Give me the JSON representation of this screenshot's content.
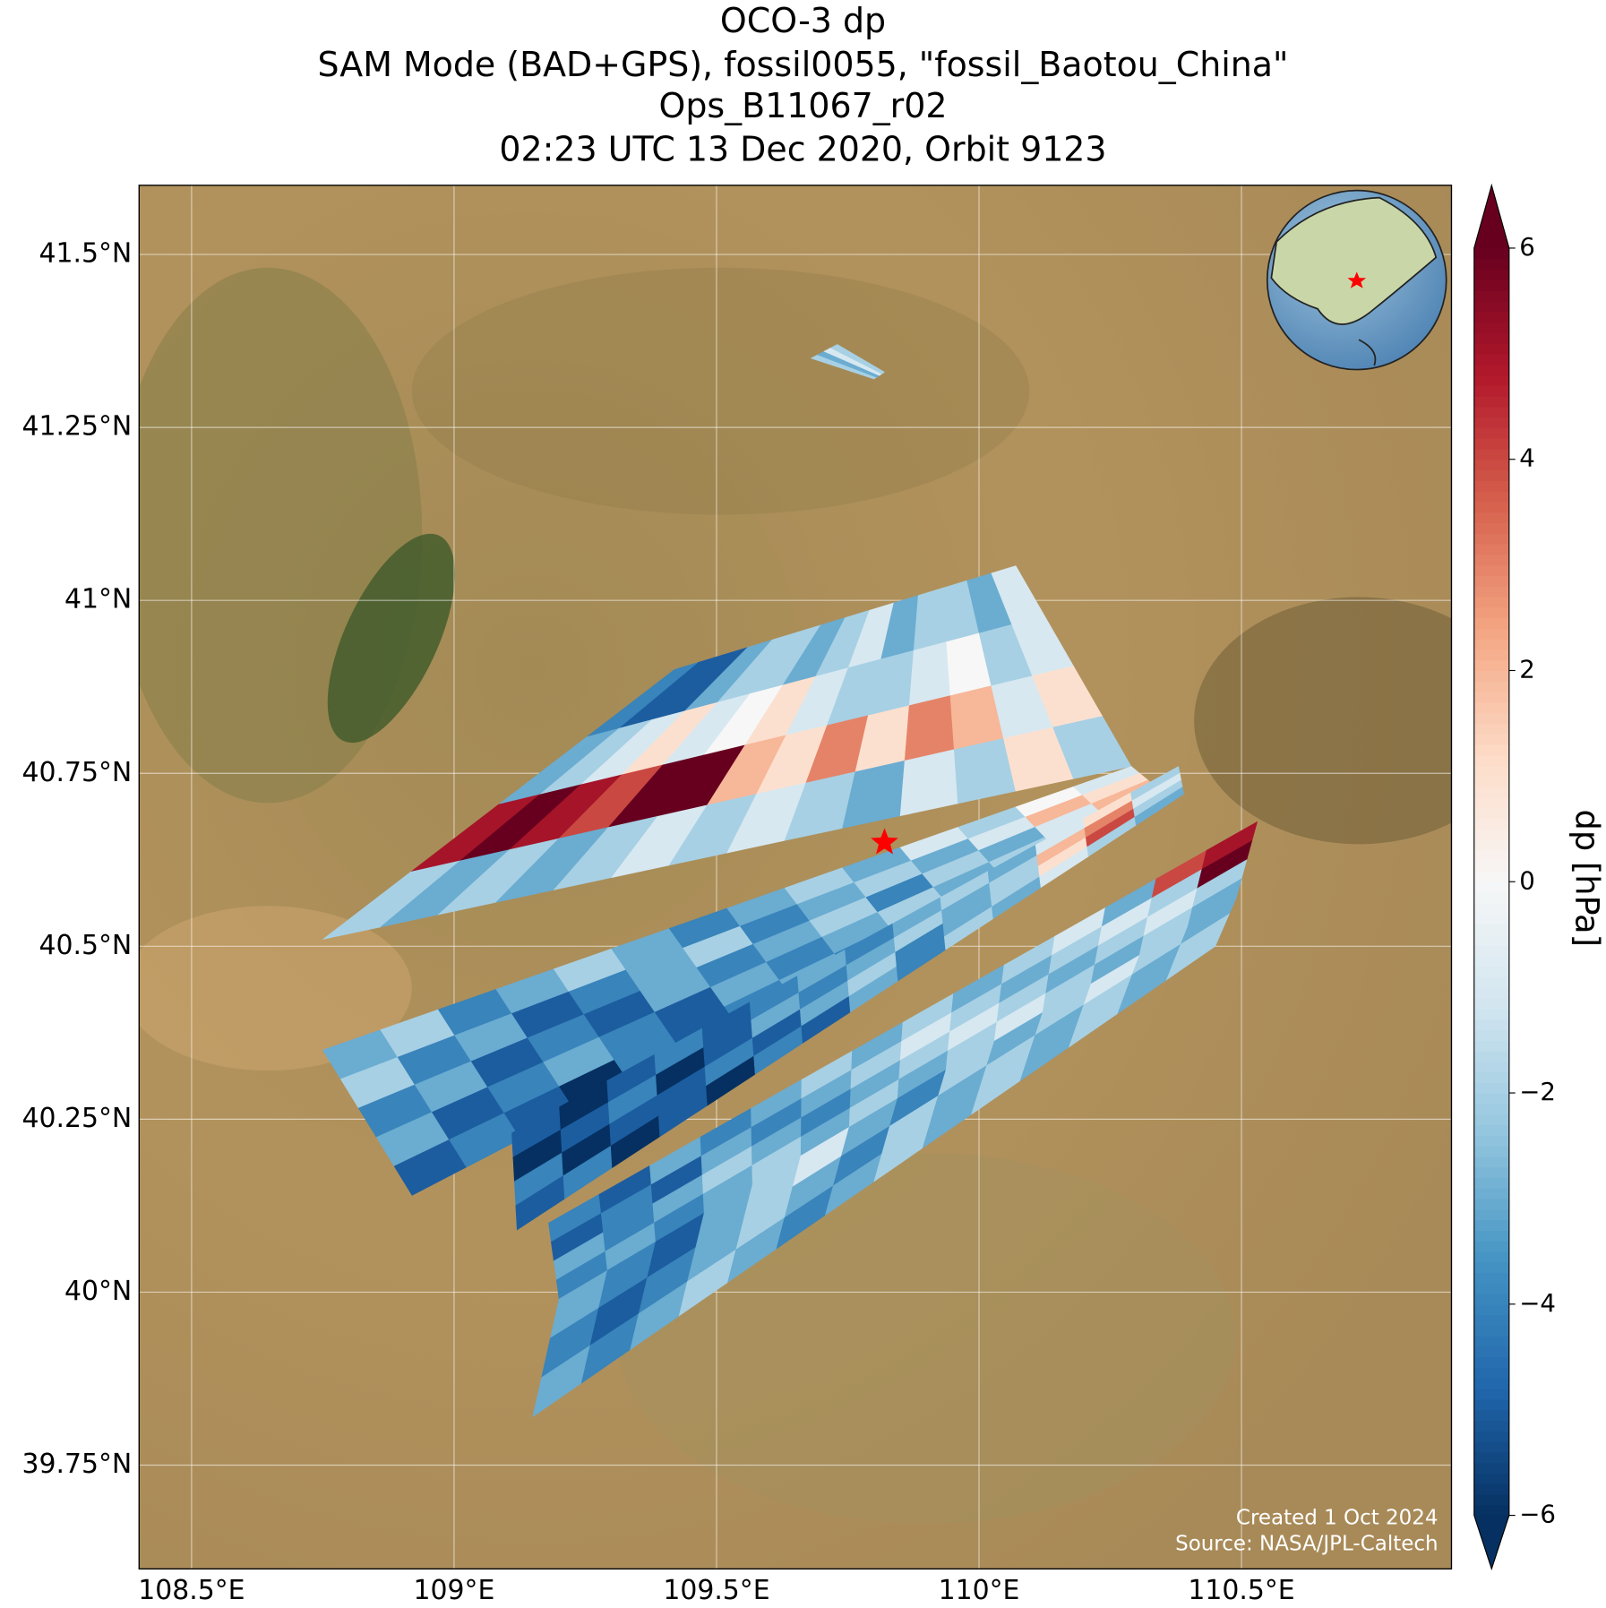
{
  "chart_data": {
    "type": "map",
    "title": [
      "OCO-3 dp",
      "SAM Mode (BAD+GPS), fossil0055, \"fossil_Baotou_China\"",
      "Ops_B11067_r02",
      "02:23 UTC 13 Dec 2020, Orbit 9123"
    ],
    "xlim": [
      108.4,
      110.9
    ],
    "ylim": [
      39.6,
      41.6
    ],
    "xticks": [
      {
        "value": 108.5,
        "label": "108.5°E"
      },
      {
        "value": 109,
        "label": "109°E"
      },
      {
        "value": 109.5,
        "label": "109.5°E"
      },
      {
        "value": 110,
        "label": "110°E"
      },
      {
        "value": 110.5,
        "label": "110.5°E"
      }
    ],
    "yticks": [
      {
        "value": 39.75,
        "label": "39.75°N"
      },
      {
        "value": 40,
        "label": "40°N"
      },
      {
        "value": 40.25,
        "label": "40.25°N"
      },
      {
        "value": 40.5,
        "label": "40.5°N"
      },
      {
        "value": 40.75,
        "label": "40.75°N"
      },
      {
        "value": 41,
        "label": "41°N"
      },
      {
        "value": 41.25,
        "label": "41.25°N"
      },
      {
        "value": 41.5,
        "label": "41.5°N"
      }
    ],
    "grid": true,
    "swaths": [
      {
        "corners": [
          [
            109.42,
            40.9
          ],
          [
            110.07,
            41.05
          ],
          [
            110.29,
            40.76
          ],
          [
            108.75,
            40.51
          ]
        ],
        "values": [
          [
            -4,
            -5,
            -5,
            -3,
            -2,
            -2,
            -3,
            -2,
            -1,
            -3,
            -2,
            -2,
            -3,
            -1
          ],
          [
            -3,
            -2,
            -1,
            1,
            -1,
            0,
            1,
            -1,
            -2,
            -2,
            -1,
            0,
            -2,
            -1
          ],
          [
            5,
            6,
            5,
            4,
            6,
            6,
            2,
            1,
            3,
            1,
            3,
            2,
            -1,
            1
          ],
          [
            -2,
            -3,
            -2,
            -3,
            -2,
            -1,
            -2,
            -1,
            -2,
            -3,
            -1,
            -2,
            1,
            -2
          ]
        ]
      },
      {
        "corners": [
          [
            108.75,
            40.35
          ],
          [
            110.29,
            40.76
          ],
          [
            110.37,
            40.71
          ],
          [
            108.92,
            40.14
          ]
        ],
        "values": [
          [
            -3,
            -2,
            -4,
            -3,
            -2,
            -3,
            -4,
            -3,
            -2,
            -3,
            -1,
            -2,
            0,
            -1
          ],
          [
            -2,
            -4,
            -3,
            -5,
            -4,
            -3,
            -2,
            -4,
            -3,
            -2,
            -3,
            -1,
            2,
            1
          ],
          [
            -4,
            -3,
            -5,
            -4,
            -5,
            -3,
            -4,
            -3,
            -2,
            -4,
            -2,
            -3,
            -1,
            2
          ],
          [
            -3,
            -5,
            -4,
            -3,
            -4,
            -5,
            -3,
            -4,
            -3,
            -2,
            -3,
            -2,
            -1,
            -2
          ],
          [
            -5,
            -4,
            -5,
            -6,
            -4,
            -5,
            -4,
            -3,
            -4,
            -3,
            -2,
            -3,
            -2,
            -3
          ]
        ]
      },
      {
        "corners": [
          [
            109.11,
            40.23
          ],
          [
            110.38,
            40.76
          ],
          [
            110.39,
            40.72
          ],
          [
            109.12,
            40.09
          ]
        ],
        "values": [
          [
            -5,
            -6,
            -5,
            -4,
            -5,
            -4,
            -3,
            -4,
            -3,
            -2,
            -3,
            -1,
            1,
            -2
          ],
          [
            -6,
            -5,
            -4,
            -6,
            -5,
            -3,
            -4,
            -3,
            -2,
            -3,
            -2,
            2,
            3,
            -1
          ],
          [
            -4,
            -6,
            -5,
            -5,
            -4,
            -5,
            -3,
            -2,
            -4,
            -3,
            -2,
            1,
            4,
            -2
          ],
          [
            -5,
            -4,
            -6,
            -5,
            -6,
            -4,
            -5,
            -3,
            -4,
            -2,
            -3,
            -1,
            -2,
            -3
          ]
        ]
      },
      {
        "corners": [
          [
            109.18,
            40.1
          ],
          [
            110.53,
            40.68
          ],
          [
            110.49,
            40.57
          ],
          [
            109.2,
            39.99
          ]
        ],
        "values": [
          [
            -4,
            -5,
            -3,
            -4,
            -3,
            -2,
            -3,
            -2,
            -3,
            -2,
            -1,
            -3,
            4,
            5
          ],
          [
            -5,
            -4,
            -5,
            -3,
            -4,
            -3,
            -2,
            -1,
            -2,
            -3,
            -2,
            -1,
            -2,
            6
          ],
          [
            -3,
            -4,
            -3,
            -2,
            -3,
            -4,
            -3,
            -2,
            -1,
            -2,
            -3,
            -2,
            -1,
            -2
          ],
          [
            -4,
            -3,
            -4,
            -3,
            -2,
            -3,
            -2,
            -3,
            -2,
            -1,
            -2,
            -3,
            -2,
            -3
          ]
        ]
      },
      {
        "corners": [
          [
            109.2,
            39.99
          ],
          [
            110.49,
            40.57
          ],
          [
            110.45,
            40.5
          ],
          [
            109.15,
            39.82
          ]
        ],
        "values": [
          [
            -3,
            -4,
            -5,
            -3,
            -2,
            -1,
            -3,
            -4,
            -2,
            -3,
            -2,
            -1,
            -2,
            -3
          ],
          [
            -4,
            -5,
            -4,
            -3,
            -2,
            -3,
            -4,
            -2,
            -3,
            -2,
            -3,
            -2,
            -3,
            -2
          ],
          [
            -3,
            -4,
            -3,
            -2,
            -3,
            -4,
            -3,
            -2,
            -3,
            -2,
            -3,
            -2,
            -3,
            -2
          ]
        ]
      },
      {
        "corners": [
          [
            109.68,
            41.35
          ],
          [
            109.73,
            41.37
          ],
          [
            109.82,
            41.33
          ],
          [
            109.8,
            41.32
          ]
        ],
        "values": [
          [
            -2,
            -3,
            -1,
            -2
          ]
        ]
      }
    ],
    "target": {
      "lon": 109.82,
      "lat": 40.65,
      "color": "#ff0000"
    },
    "colorbar": {
      "label": "dp [hPa]",
      "colormap": "RdBu_r",
      "clim": [
        -6,
        6
      ],
      "extend": "both",
      "ticks": [
        {
          "value": -6,
          "label": "−6"
        },
        {
          "value": -4,
          "label": "−4"
        },
        {
          "value": -2,
          "label": "−2"
        },
        0,
        2,
        4,
        6
      ]
    },
    "annotations": [
      "Created 1 Oct 2024",
      "Source: NASA/JPL-Caltech"
    ]
  }
}
